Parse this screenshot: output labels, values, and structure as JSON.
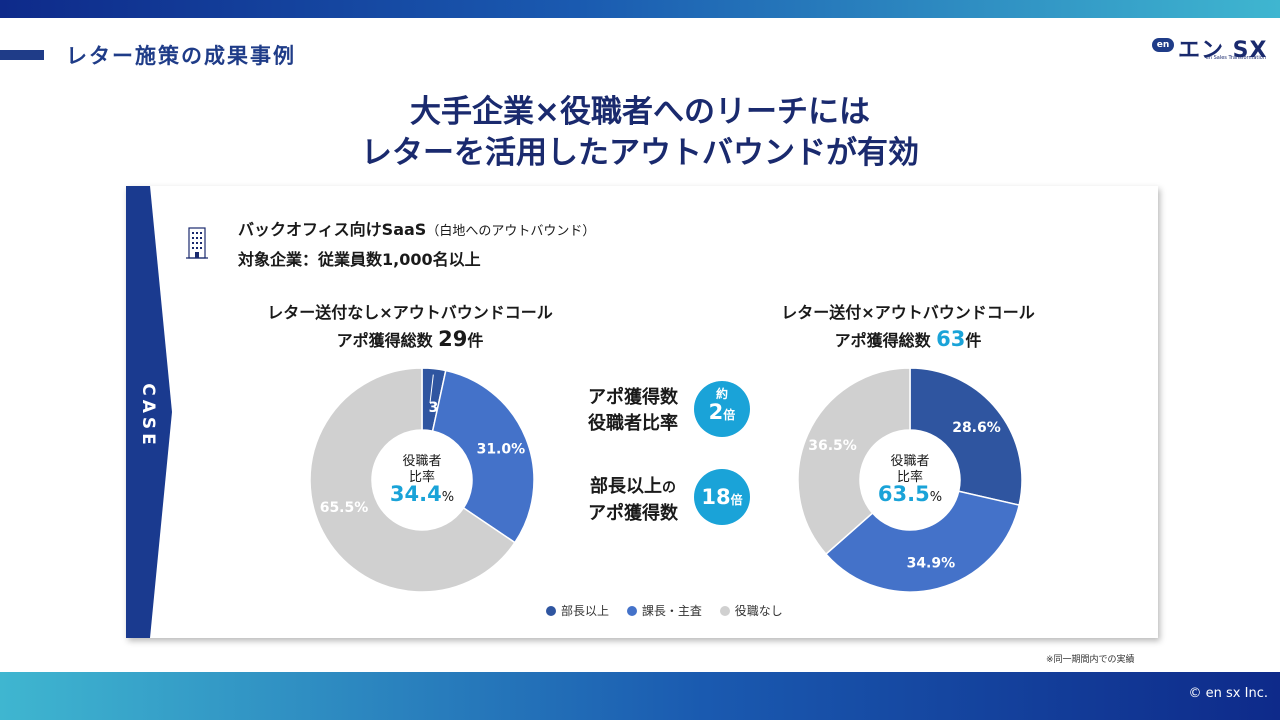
{
  "header": {
    "section_title": "レター施策の成果事例",
    "logo_mark": "en",
    "logo_name": "エン SX",
    "logo_sub": "en Sales Transformation"
  },
  "headline": {
    "line1": "大手企業×役職者へのリーチには",
    "line2": "レターを活用したアウトバウンドが有効"
  },
  "case": {
    "band_label": "CASE",
    "band_color": "#1a3a8f",
    "product": "バックオフィス向けSaaS",
    "product_note": "（白地へのアウトバウンド）",
    "target": "対象企業：従業員数1,000名以上"
  },
  "left_chart": {
    "title": "レター送付なし×アウトバウンドコール",
    "sub_prefix": "アポ獲得総数 ",
    "sub_count": "29",
    "sub_suffix": "件",
    "center_label_1": "役職者",
    "center_label_2": "比率",
    "center_value": "34.4",
    "center_unit": "%"
  },
  "right_chart": {
    "title": "レター送付×アウトバウンドコール",
    "sub_prefix": "アポ獲得総数 ",
    "sub_count": "63",
    "sub_suffix": "件",
    "center_label_1": "役職者",
    "center_label_2": "比率",
    "center_value": "63.5",
    "center_unit": "%"
  },
  "middle": {
    "stat1_line1": "アポ獲得数",
    "stat1_line2": "役職者比率",
    "badge1_top": "約",
    "badge1_num": "2",
    "badge1_unit": "倍",
    "stat2_line1": "部長以上",
    "stat2_line1_suffix": "の",
    "stat2_line2": "アポ獲得数",
    "badge2_num": "18",
    "badge2_unit": "倍"
  },
  "chart_data": [
    {
      "type": "pie",
      "title": "レター送付なし×アウトバウンドコール",
      "categories": [
        "部長以上",
        "課長・主査",
        "役職なし"
      ],
      "values": [
        3.4,
        31.0,
        65.5
      ],
      "labels": [
        "3.4%",
        "31.0%",
        "65.5%"
      ],
      "colors": [
        "#2f55a0",
        "#4472c9",
        "#d0d0d0"
      ]
    },
    {
      "type": "pie",
      "title": "レター送付×アウトバウンドコール",
      "categories": [
        "部長以上",
        "課長・主査",
        "役職なし"
      ],
      "values": [
        28.6,
        34.9,
        36.5
      ],
      "labels": [
        "28.6%",
        "34.9%",
        "36.5%"
      ],
      "colors": [
        "#2f55a0",
        "#4472c9",
        "#d0d0d0"
      ]
    }
  ],
  "legend": {
    "items": [
      {
        "label": "部長以上",
        "color": "#2f55a0"
      },
      {
        "label": "課長・主査",
        "color": "#4472c9"
      },
      {
        "label": "役職なし",
        "color": "#d0d0d0"
      }
    ]
  },
  "footnote": "※同一期間内での実績",
  "copyright": "© en sx Inc.",
  "colors": {
    "navy": "#1a2a6e",
    "accent": "#1aa3d8"
  }
}
